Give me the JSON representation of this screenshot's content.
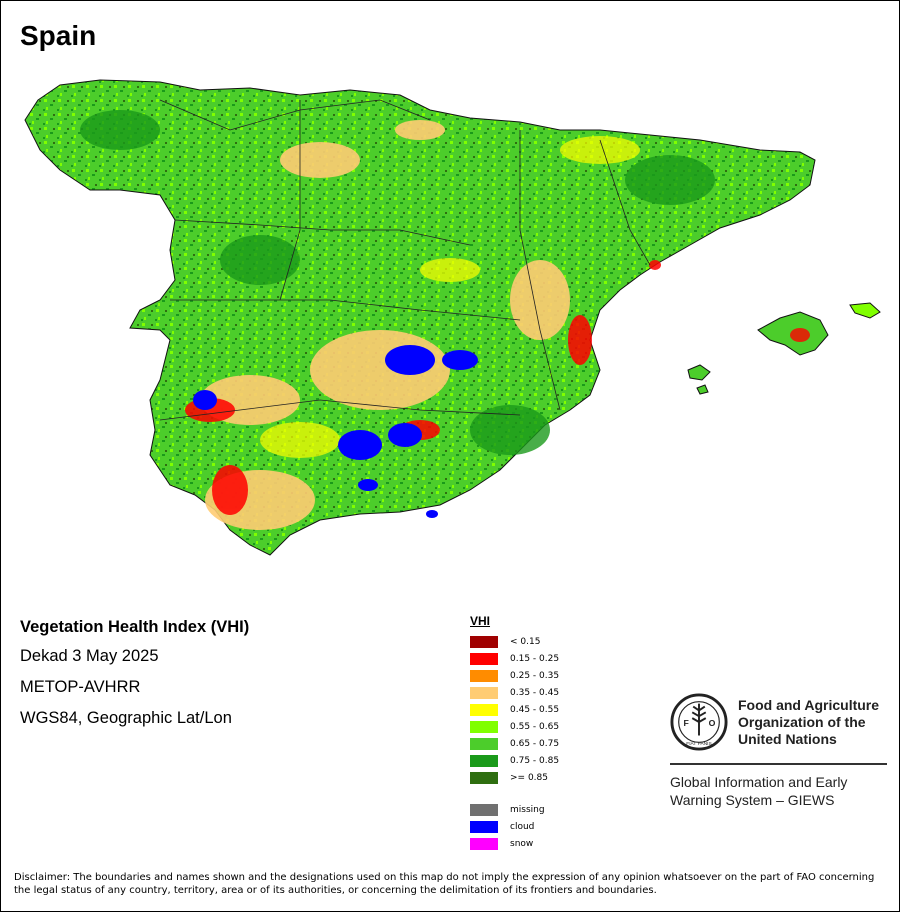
{
  "map": {
    "title": "Spain",
    "info_title": "Vegetation Health Index (VHI)",
    "period": "Dekad 3 May 2025",
    "sensor": "METOP-AVHRR",
    "projection": "WGS84, Geographic Lat/Lon"
  },
  "legend": {
    "title": "VHI",
    "classes": [
      {
        "label": "< 0.15",
        "color": "#a00000"
      },
      {
        "label": "0.15 - 0.25",
        "color": "#ff0000"
      },
      {
        "label": "0.25 - 0.35",
        "color": "#ff8c00"
      },
      {
        "label": "0.35 - 0.45",
        "color": "#ffcc73"
      },
      {
        "label": "0.45 - 0.55",
        "color": "#ffff00"
      },
      {
        "label": "0.55 - 0.65",
        "color": "#80ff00"
      },
      {
        "label": "0.65 - 0.75",
        "color": "#4ccd2b"
      },
      {
        "label": "0.75 - 0.85",
        "color": "#1a9a1a"
      },
      {
        "label": ">= 0.85",
        "color": "#2e6e10"
      }
    ],
    "special": [
      {
        "label": "missing",
        "color": "#707070"
      },
      {
        "label": "cloud",
        "color": "#0000ff"
      },
      {
        "label": "snow",
        "color": "#ff00ff"
      }
    ]
  },
  "fao": {
    "logo_text": "FAO",
    "logo_motto": "FIAT PANIS",
    "name_line1": "Food and Agriculture",
    "name_line2": "Organization of the",
    "name_line3": "United Nations",
    "giews_line1": "Global Information and Early",
    "giews_line2": "Warning System – GIEWS"
  },
  "disclaimer": "Disclaimer: The boundaries and names shown and the designations used on this map do not imply the expression of any opinion whatsoever on the part of FAO concerning the legal status of any country, territory, area or of its authorities, or concerning the delimitation of its frontiers and boundaries."
}
